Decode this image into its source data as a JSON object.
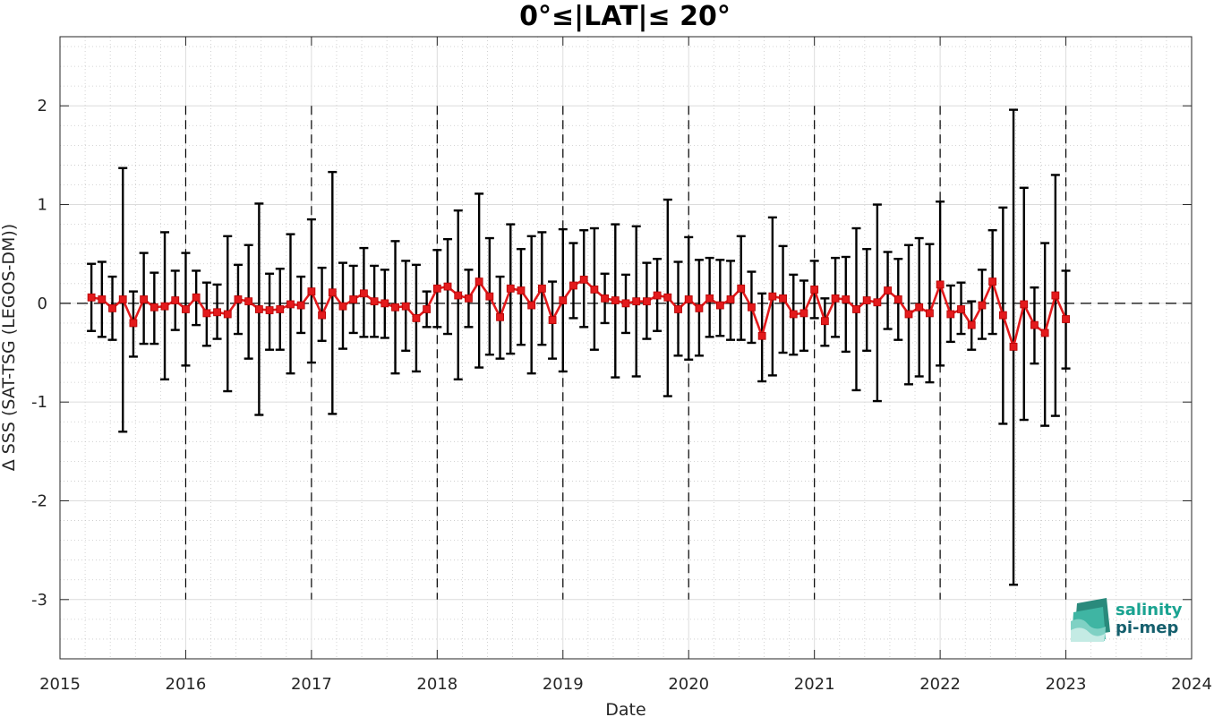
{
  "chart_data": {
    "type": "line",
    "title": "0°≤|LAT|≤ 20°",
    "xlabel": "Date",
    "ylabel": "Δ SSS (SAT-TSG (LEGOS-DM))",
    "xlim": [
      "2015-01-01",
      "2024-01-01"
    ],
    "ylim": [
      -3.6,
      2.7
    ],
    "x_ticks": [
      "2015",
      "2016",
      "2017",
      "2018",
      "2019",
      "2020",
      "2021",
      "2022",
      "2023",
      "2024"
    ],
    "y_ticks": [
      "-3",
      "-2",
      "-1",
      "0",
      "1",
      "2"
    ],
    "grid": true,
    "year_boundaries": [
      "2016",
      "2017",
      "2018",
      "2019",
      "2020",
      "2021",
      "2022",
      "2023"
    ],
    "zero_line": 0,
    "series": [
      {
        "color": "#e31a1c",
        "marker": "square",
        "x": [
          "2015-04",
          "2015-05",
          "2015-06",
          "2015-07",
          "2015-08",
          "2015-09",
          "2015-10",
          "2015-11",
          "2015-12",
          "2016-01",
          "2016-02",
          "2016-03",
          "2016-04",
          "2016-05",
          "2016-06",
          "2016-07",
          "2016-08",
          "2016-09",
          "2016-10",
          "2016-11",
          "2016-12",
          "2017-01",
          "2017-02",
          "2017-03",
          "2017-04",
          "2017-05",
          "2017-06",
          "2017-07",
          "2017-08",
          "2017-09",
          "2017-10",
          "2017-11",
          "2017-12",
          "2018-01",
          "2018-02",
          "2018-03",
          "2018-04",
          "2018-05",
          "2018-06",
          "2018-07",
          "2018-08",
          "2018-09",
          "2018-10",
          "2018-11",
          "2018-12",
          "2019-01",
          "2019-02",
          "2019-03",
          "2019-04",
          "2019-05",
          "2019-06",
          "2019-07",
          "2019-08",
          "2019-09",
          "2019-10",
          "2019-11",
          "2019-12",
          "2020-01",
          "2020-02",
          "2020-03",
          "2020-04",
          "2020-05",
          "2020-06",
          "2020-07",
          "2020-08",
          "2020-09",
          "2020-10",
          "2020-11",
          "2020-12",
          "2021-01",
          "2021-02",
          "2021-03",
          "2021-04",
          "2021-05",
          "2021-06",
          "2021-07",
          "2021-08",
          "2021-09",
          "2021-10",
          "2021-11",
          "2021-12",
          "2022-01",
          "2022-02",
          "2022-03",
          "2022-04",
          "2022-05",
          "2022-06",
          "2022-07",
          "2022-08",
          "2022-09",
          "2022-10",
          "2022-11",
          "2022-12",
          "2023-01"
        ],
        "values": [
          0.06,
          0.04,
          -0.05,
          0.04,
          -0.2,
          0.04,
          -0.04,
          -0.03,
          0.03,
          -0.06,
          0.06,
          -0.1,
          -0.09,
          -0.11,
          0.04,
          0.02,
          -0.06,
          -0.07,
          -0.06,
          -0.01,
          -0.02,
          0.12,
          -0.12,
          0.11,
          -0.03,
          0.04,
          0.1,
          0.02,
          0.0,
          -0.04,
          -0.03,
          -0.15,
          -0.06,
          0.15,
          0.17,
          0.08,
          0.05,
          0.22,
          0.07,
          -0.14,
          0.15,
          0.13,
          -0.02,
          0.15,
          -0.17,
          0.03,
          0.18,
          0.24,
          0.14,
          0.05,
          0.03,
          0.0,
          0.02,
          0.02,
          0.08,
          0.06,
          -0.06,
          0.04,
          -0.05,
          0.05,
          -0.02,
          0.04,
          0.15,
          -0.04,
          -0.33,
          0.07,
          0.05,
          -0.11,
          -0.1,
          0.14,
          -0.18,
          0.05,
          0.04,
          -0.06,
          0.03,
          0.01,
          0.13,
          0.04,
          -0.11,
          -0.04,
          -0.1,
          0.19,
          -0.11,
          -0.06,
          -0.22,
          -0.02,
          0.22,
          -0.12,
          -0.44,
          -0.01,
          -0.22,
          -0.3,
          0.08,
          -0.16
        ],
        "err_upper": [
          0.4,
          0.42,
          0.27,
          1.37,
          0.12,
          0.51,
          0.31,
          0.72,
          0.33,
          0.51,
          0.33,
          0.21,
          0.19,
          0.68,
          0.39,
          0.59,
          1.01,
          0.3,
          0.35,
          0.7,
          0.27,
          0.85,
          0.36,
          1.33,
          0.41,
          0.38,
          0.56,
          0.38,
          0.34,
          0.63,
          0.43,
          0.39,
          0.12,
          0.54,
          0.65,
          0.94,
          0.34,
          1.11,
          0.66,
          0.27,
          0.8,
          0.55,
          0.68,
          0.72,
          0.22,
          0.75,
          0.61,
          0.74,
          0.76,
          0.3,
          0.8,
          0.29,
          0.78,
          0.41,
          0.45,
          1.05,
          0.42,
          0.67,
          0.44,
          0.46,
          0.44,
          0.43,
          0.68,
          0.32,
          0.1,
          0.87,
          0.58,
          0.29,
          0.23,
          0.43,
          0.05,
          0.46,
          0.47,
          0.76,
          0.55,
          1.0,
          0.52,
          0.45,
          0.59,
          0.66,
          0.6,
          1.03,
          0.18,
          0.21,
          0.02,
          0.34,
          0.74,
          0.97,
          1.96,
          1.17,
          0.16,
          0.61,
          1.3,
          0.33
        ],
        "err_lower": [
          -0.28,
          -0.34,
          -0.37,
          -1.3,
          -0.54,
          -0.41,
          -0.41,
          -0.77,
          -0.27,
          -0.63,
          -0.22,
          -0.43,
          -0.36,
          -0.89,
          -0.31,
          -0.56,
          -1.13,
          -0.47,
          -0.47,
          -0.71,
          -0.3,
          -0.6,
          -0.38,
          -1.12,
          -0.46,
          -0.3,
          -0.34,
          -0.34,
          -0.35,
          -0.71,
          -0.48,
          -0.69,
          -0.24,
          -0.24,
          -0.31,
          -0.77,
          -0.24,
          -0.65,
          -0.52,
          -0.56,
          -0.51,
          -0.42,
          -0.71,
          -0.42,
          -0.56,
          -0.69,
          -0.15,
          -0.24,
          -0.47,
          -0.2,
          -0.75,
          -0.3,
          -0.74,
          -0.36,
          -0.28,
          -0.94,
          -0.53,
          -0.57,
          -0.53,
          -0.34,
          -0.33,
          -0.37,
          -0.37,
          -0.4,
          -0.79,
          -0.73,
          -0.5,
          -0.52,
          -0.48,
          -0.15,
          -0.43,
          -0.34,
          -0.49,
          -0.88,
          -0.48,
          -0.99,
          -0.26,
          -0.37,
          -0.82,
          -0.74,
          -0.8,
          -0.63,
          -0.39,
          -0.31,
          -0.47,
          -0.36,
          -0.31,
          -1.22,
          -2.85,
          -1.18,
          -0.61,
          -1.24,
          -1.14,
          -0.66
        ]
      }
    ]
  },
  "logo": {
    "line1": "salinity",
    "line2": "pi-mep",
    "accent_color": "#1aa391"
  }
}
